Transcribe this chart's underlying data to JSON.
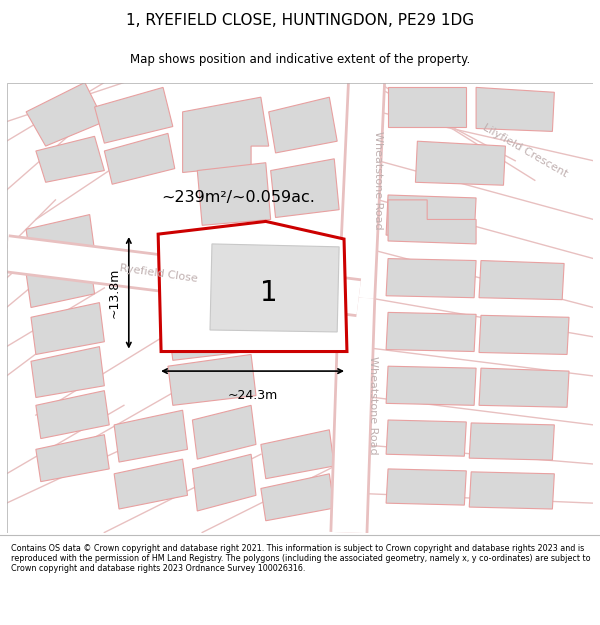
{
  "title": "1, RYEFIELD CLOSE, HUNTINGDON, PE29 1DG",
  "subtitle": "Map shows position and indicative extent of the property.",
  "footer": "Contains OS data © Crown copyright and database right 2021. This information is subject to Crown copyright and database rights 2023 and is reproduced with the permission of HM Land Registry. The polygons (including the associated geometry, namely x, y co-ordinates) are subject to Crown copyright and database rights 2023 Ordnance Survey 100026316.",
  "map_bg": "#f0eeee",
  "road_fill": "#ffffff",
  "road_edge": "#e8c0c0",
  "building_fill": "#d8d8d8",
  "building_edge": "#e8a0a0",
  "plot_line_color": "#cc0000",
  "plot_fill": "#ffffff",
  "dim_color": "#000000",
  "street_color": "#c0b0b0",
  "area_text": "~239m²/~0.059ac.",
  "width_label": "~24.3m",
  "height_label": "~13.8m",
  "plot_label": "1",
  "ryefield_label": "Ryefield Close",
  "wheatstone_label": "Wheatstone Road",
  "lilyfield_label": "Lilyfield Crescent"
}
